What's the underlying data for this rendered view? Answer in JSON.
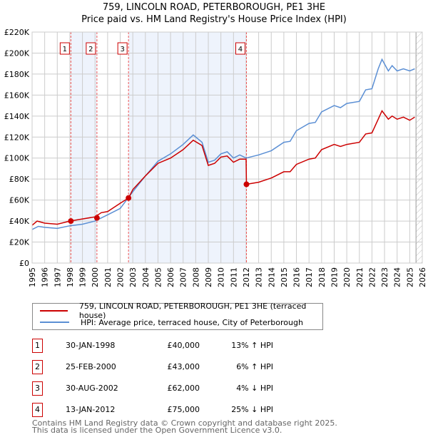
{
  "chart_data": {
    "type": "line",
    "title": "759, LINCOLN ROAD, PETERBOROUGH, PE1 3HE",
    "subtitle": "Price paid vs. HM Land Registry's House Price Index (HPI)",
    "xlim": [
      1995,
      2026
    ],
    "ylim": [
      0,
      220000
    ],
    "x_ticks": [
      "1995",
      "1996",
      "1997",
      "1998",
      "1999",
      "2000",
      "2001",
      "2002",
      "2003",
      "2004",
      "2005",
      "2006",
      "2007",
      "2008",
      "2009",
      "2010",
      "2011",
      "2012",
      "2013",
      "2014",
      "2015",
      "2016",
      "2017",
      "2018",
      "2019",
      "2020",
      "2021",
      "2022",
      "2023",
      "2024",
      "2025",
      "2026"
    ],
    "y_ticks": [
      {
        "v": 0,
        "l": "£0"
      },
      {
        "v": 20000,
        "l": "£20K"
      },
      {
        "v": 40000,
        "l": "£40K"
      },
      {
        "v": 60000,
        "l": "£60K"
      },
      {
        "v": 80000,
        "l": "£80K"
      },
      {
        "v": 100000,
        "l": "£100K"
      },
      {
        "v": 120000,
        "l": "£120K"
      },
      {
        "v": 140000,
        "l": "£140K"
      },
      {
        "v": 160000,
        "l": "£160K"
      },
      {
        "v": 180000,
        "l": "£180K"
      },
      {
        "v": 200000,
        "l": "£200K"
      },
      {
        "v": 220000,
        "l": "£220K"
      }
    ],
    "grid": true,
    "shaded_ranges": [
      [
        1998.08,
        2000.15
      ],
      [
        2002.66,
        2012.03
      ]
    ],
    "forecast_hatch_from": 2025.5,
    "series": [
      {
        "name": "759, LINCOLN ROAD, PETERBOROUGH, PE1 3HE (terraced house)",
        "color": "#cc0000",
        "x": [
          1995,
          1995.4,
          1996,
          1997,
          1998,
          1999,
          2000,
          2000.5,
          2001,
          2002,
          2002.66,
          2003,
          2004,
          2005,
          2006,
          2007,
          2007.8,
          2008.5,
          2009,
          2009.5,
          2010,
          2010.5,
          2011,
          2011.5,
          2012,
          2012.03,
          2013,
          2014,
          2015,
          2015.5,
          2016,
          2017,
          2017.5,
          2018,
          2019,
          2019.5,
          2020,
          2021,
          2021.5,
          2022,
          2022.5,
          2022.8,
          2023.3,
          2023.6,
          2024,
          2024.5,
          2025,
          2025.4
        ],
        "y": [
          36000,
          40000,
          38000,
          37000,
          40000,
          42000,
          44000,
          48000,
          49000,
          57000,
          62000,
          70000,
          83000,
          95000,
          100000,
          108000,
          117000,
          112000,
          93000,
          95000,
          101000,
          102000,
          96000,
          99000,
          99000,
          75000,
          77000,
          81000,
          87000,
          87000,
          94000,
          99000,
          100000,
          108000,
          113000,
          111000,
          113000,
          115000,
          123000,
          124000,
          137000,
          145000,
          137000,
          140000,
          137000,
          139000,
          136000,
          139000
        ]
      },
      {
        "name": "HPI: Average price, terraced house, City of Peterborough",
        "color": "#5b8fd4",
        "x": [
          1995,
          1995.5,
          1996,
          1997,
          1998,
          1999,
          2000,
          2001,
          2002,
          2003,
          2004,
          2005,
          2006,
          2007,
          2007.8,
          2008.5,
          2009,
          2009.5,
          2010,
          2010.5,
          2011,
          2011.5,
          2012,
          2013,
          2014,
          2015,
          2015.5,
          2016,
          2017,
          2017.5,
          2018,
          2019,
          2019.5,
          2020,
          2021,
          2021.5,
          2022,
          2022.5,
          2022.8,
          2023.3,
          2023.6,
          2024,
          2024.5,
          2025,
          2025.4
        ],
        "y": [
          32000,
          35000,
          34000,
          33000,
          35500,
          37000,
          40000,
          46000,
          52000,
          68000,
          83000,
          97000,
          104000,
          113000,
          122000,
          115000,
          96000,
          98000,
          104000,
          106000,
          100000,
          103000,
          100000,
          103000,
          107000,
          115000,
          116000,
          126000,
          133000,
          134000,
          144000,
          150000,
          148000,
          152000,
          154000,
          165000,
          166000,
          185000,
          194000,
          183000,
          188000,
          183000,
          185000,
          183000,
          185000
        ]
      }
    ],
    "sales": [
      {
        "id": "1",
        "x": 1998.08,
        "y": 40000
      },
      {
        "id": "2",
        "x": 2000.15,
        "y": 43000
      },
      {
        "id": "3",
        "x": 2002.66,
        "y": 62000
      },
      {
        "id": "4",
        "x": 2012.03,
        "y": 75000
      }
    ]
  },
  "title": {
    "line1": "759, LINCOLN ROAD, PETERBOROUGH, PE1 3HE",
    "line2": "Price paid vs. HM Land Registry's House Price Index (HPI)"
  },
  "legend": [
    "759, LINCOLN ROAD, PETERBOROUGH, PE1 3HE (terraced house)",
    "HPI: Average price, terraced house, City of Peterborough"
  ],
  "transactions": [
    {
      "num": "1",
      "date": "30-JAN-1998",
      "price": "£40,000",
      "hpi": "13% ↑ HPI"
    },
    {
      "num": "2",
      "date": "25-FEB-2000",
      "price": "£43,000",
      "hpi": "6% ↑ HPI"
    },
    {
      "num": "3",
      "date": "30-AUG-2002",
      "price": "£62,000",
      "hpi": "4% ↓ HPI"
    },
    {
      "num": "4",
      "date": "13-JAN-2012",
      "price": "£75,000",
      "hpi": "25% ↓ HPI"
    }
  ],
  "footer": {
    "line1": "Contains HM Land Registry data © Crown copyright and database right 2025.",
    "line2": "This data is licensed under the Open Government Licence v3.0."
  }
}
